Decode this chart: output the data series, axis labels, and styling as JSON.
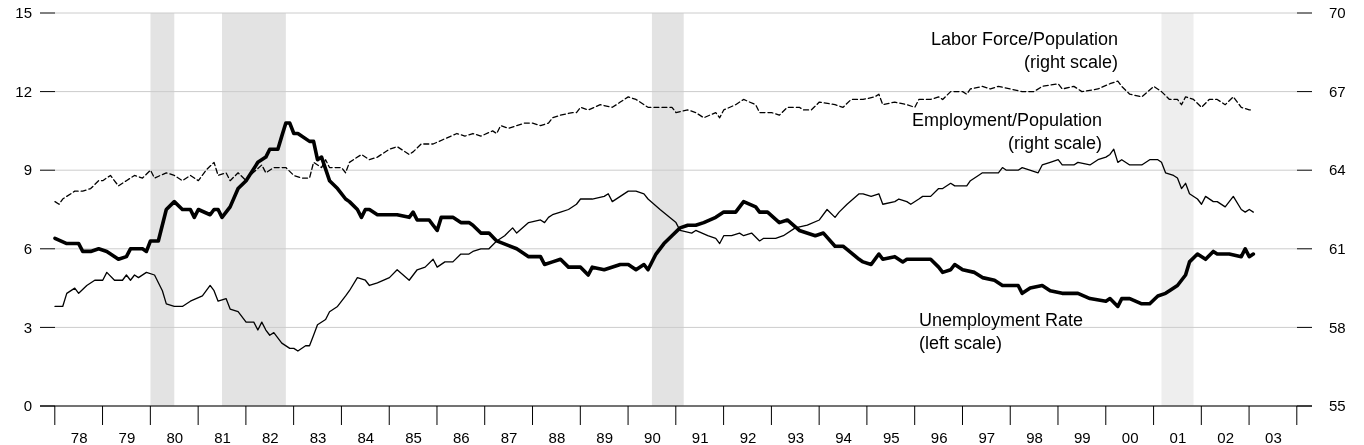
{
  "chart_data": {
    "type": "line",
    "xlim": [
      "1978-01",
      "2004-01"
    ],
    "xticks": [
      {
        "value": "1978-07",
        "label": "78"
      },
      {
        "value": "1979-07",
        "label": "79"
      },
      {
        "value": "1980-07",
        "label": "80"
      },
      {
        "value": "1981-07",
        "label": "81"
      },
      {
        "value": "1982-07",
        "label": "82"
      },
      {
        "value": "1983-07",
        "label": "83"
      },
      {
        "value": "1984-07",
        "label": "84"
      },
      {
        "value": "1985-07",
        "label": "85"
      },
      {
        "value": "1986-07",
        "label": "86"
      },
      {
        "value": "1987-07",
        "label": "87"
      },
      {
        "value": "1988-07",
        "label": "88"
      },
      {
        "value": "1989-07",
        "label": "89"
      },
      {
        "value": "1990-07",
        "label": "90"
      },
      {
        "value": "1991-07",
        "label": "91"
      },
      {
        "value": "1992-07",
        "label": "92"
      },
      {
        "value": "1993-07",
        "label": "93"
      },
      {
        "value": "1994-07",
        "label": "94"
      },
      {
        "value": "1995-07",
        "label": "95"
      },
      {
        "value": "1996-07",
        "label": "96"
      },
      {
        "value": "1997-07",
        "label": "97"
      },
      {
        "value": "1998-07",
        "label": "98"
      },
      {
        "value": "1999-07",
        "label": "99"
      },
      {
        "value": "2000-07",
        "label": "00"
      },
      {
        "value": "2001-07",
        "label": "01"
      },
      {
        "value": "2002-07",
        "label": "02"
      },
      {
        "value": "2003-07",
        "label": "03"
      }
    ],
    "ylim": [
      0,
      15
    ],
    "yticks": [
      0,
      3,
      6,
      9,
      12,
      15
    ],
    "y2lim": [
      55,
      70
    ],
    "y2ticks": [
      55,
      58,
      61,
      64,
      67,
      70
    ],
    "grid": "y",
    "bands": [
      {
        "axis": "x",
        "from": "1980-01",
        "to": "1980-07",
        "color": "#e3e3e3"
      },
      {
        "axis": "x",
        "from": "1981-07",
        "to": "1982-11",
        "color": "#e3e3e3"
      },
      {
        "axis": "x",
        "from": "1990-07",
        "to": "1991-03",
        "color": "#e3e3e3"
      },
      {
        "axis": "x",
        "from": "2001-03",
        "to": "2001-11",
        "color": "#eeeeee"
      }
    ],
    "series": [
      {
        "name": "Labor Force/Population (right scale)",
        "color": "#000000",
        "axis": "y2",
        "line_style": "dashed",
        "x": [
          "1978-01",
          "1978-02",
          "1978-03",
          "1978-06",
          "1978-08",
          "1978-10",
          "1978-12",
          "1979-01",
          "1979-03",
          "1979-05",
          "1979-07",
          "1979-09",
          "1979-11",
          "1980-01",
          "1980-02",
          "1980-05",
          "1980-07",
          "1980-09",
          "1980-11",
          "1981-01",
          "1981-03",
          "1981-05",
          "1981-06",
          "1981-08",
          "1981-09",
          "1981-11",
          "1982-01",
          "1982-02",
          "1982-05",
          "1982-06",
          "1982-08",
          "1982-11",
          "1983-01",
          "1983-03",
          "1983-05",
          "1983-06",
          "1983-08",
          "1983-09",
          "1983-10",
          "1984-01",
          "1984-02",
          "1984-03",
          "1984-06",
          "1984-08",
          "1984-10",
          "1985-01",
          "1985-03",
          "1985-06",
          "1985-07",
          "1985-09",
          "1985-12",
          "1986-03",
          "1986-06",
          "1986-08",
          "1986-10",
          "1986-12",
          "1987-03",
          "1987-04",
          "1987-05",
          "1987-07",
          "1987-09",
          "1987-11",
          "1988-01",
          "1988-03",
          "1988-05",
          "1988-06",
          "1988-08",
          "1988-11",
          "1988-12",
          "1989-01",
          "1989-03",
          "1989-06",
          "1989-09",
          "1989-11",
          "1990-01",
          "1990-03",
          "1990-06",
          "1990-09",
          "1990-12",
          "1991-01",
          "1991-04",
          "1991-06",
          "1991-08",
          "1991-11",
          "1991-12",
          "1992-01",
          "1992-04",
          "1992-06",
          "1992-09",
          "1992-10",
          "1993-01",
          "1993-03",
          "1993-05",
          "1993-08",
          "1993-09",
          "1993-11",
          "1994-01",
          "1994-05",
          "1994-07",
          "1994-09",
          "1994-12",
          "1995-03",
          "1995-04",
          "1995-05",
          "1995-08",
          "1995-11",
          "1996-01",
          "1996-02",
          "1996-05",
          "1996-07",
          "1996-08",
          "1996-10",
          "1997-01",
          "1997-02",
          "1997-03",
          "1997-06",
          "1997-08",
          "1997-10",
          "1998-01",
          "1998-04",
          "1998-07",
          "1998-09",
          "1999-01",
          "1999-02",
          "1999-05",
          "1999-07",
          "1999-11",
          "2000-02",
          "2000-04",
          "2000-05",
          "2000-07",
          "2000-10",
          "2001-01",
          "2001-03",
          "2001-05",
          "2001-07",
          "2001-08",
          "2001-09",
          "2001-11",
          "2002-01",
          "2002-03",
          "2002-05",
          "2002-07",
          "2002-09",
          "2002-11",
          "2003-01",
          "2003-02"
        ],
        "values": [
          62.8,
          62.7,
          62.9,
          63.2,
          63.2,
          63.3,
          63.6,
          63.6,
          63.8,
          63.4,
          63.6,
          63.8,
          63.7,
          64.0,
          63.7,
          63.9,
          63.8,
          63.6,
          63.8,
          63.6,
          64.0,
          64.3,
          63.8,
          63.9,
          63.6,
          63.9,
          63.6,
          63.8,
          64.2,
          63.9,
          64.1,
          64.1,
          63.8,
          63.7,
          63.7,
          64.3,
          64.1,
          64.4,
          64.1,
          64.1,
          63.9,
          64.3,
          64.6,
          64.4,
          64.5,
          64.8,
          64.9,
          64.6,
          64.7,
          65.0,
          65.0,
          65.2,
          65.4,
          65.3,
          65.4,
          65.3,
          65.5,
          65.4,
          65.7,
          65.6,
          65.7,
          65.8,
          65.8,
          65.7,
          65.8,
          66.0,
          66.1,
          66.2,
          66.2,
          66.4,
          66.3,
          66.5,
          66.4,
          66.6,
          66.8,
          66.7,
          66.4,
          66.4,
          66.4,
          66.2,
          66.3,
          66.2,
          66.0,
          66.2,
          66.0,
          66.3,
          66.5,
          66.7,
          66.5,
          66.2,
          66.2,
          66.1,
          66.4,
          66.4,
          66.3,
          66.3,
          66.6,
          66.5,
          66.4,
          66.7,
          66.7,
          66.8,
          66.9,
          66.5,
          66.6,
          66.5,
          66.4,
          66.7,
          66.7,
          66.8,
          66.7,
          67.0,
          67.0,
          66.9,
          67.1,
          67.2,
          67.1,
          67.2,
          67.1,
          67.0,
          67.0,
          67.2,
          67.3,
          67.1,
          67.2,
          67.0,
          67.1,
          67.3,
          67.4,
          67.2,
          66.9,
          66.8,
          67.2,
          67.0,
          66.7,
          66.7,
          66.5,
          66.8,
          66.7,
          66.4,
          66.7,
          66.7,
          66.5,
          66.8,
          66.4,
          66.3,
          66.3
        ]
      },
      {
        "name": "Employment/Population (right scale)",
        "color": "#000000",
        "axis": "y2",
        "line_style": "solid",
        "x": [
          "1978-01",
          "1978-03",
          "1978-04",
          "1978-06",
          "1978-07",
          "1978-09",
          "1978-11",
          "1979-01",
          "1979-02",
          "1979-04",
          "1979-06",
          "1979-07",
          "1979-08",
          "1979-09",
          "1979-10",
          "1979-12",
          "1980-02",
          "1980-04",
          "1980-05",
          "1980-07",
          "1980-09",
          "1980-11",
          "1981-02",
          "1981-04",
          "1981-05",
          "1981-06",
          "1981-08",
          "1981-09",
          "1981-11",
          "1982-01",
          "1982-03",
          "1982-04",
          "1982-05",
          "1982-06",
          "1982-07",
          "1982-08",
          "1982-10",
          "1982-12",
          "1983-01",
          "1983-02",
          "1983-04",
          "1983-05",
          "1983-06",
          "1983-07",
          "1983-09",
          "1983-10",
          "1983-12",
          "1984-02",
          "1984-03",
          "1984-05",
          "1984-07",
          "1984-08",
          "1984-10",
          "1985-01",
          "1985-03",
          "1985-06",
          "1985-08",
          "1985-10",
          "1985-12",
          "1986-01",
          "1986-03",
          "1986-05",
          "1986-07",
          "1986-09",
          "1986-10",
          "1986-12",
          "1987-02",
          "1987-04",
          "1987-06",
          "1987-08",
          "1987-09",
          "1987-12",
          "1988-03",
          "1988-04",
          "1988-05",
          "1988-06",
          "1988-08",
          "1988-10",
          "1988-12",
          "1989-01",
          "1989-04",
          "1989-07",
          "1989-08",
          "1989-09",
          "1989-11",
          "1990-01",
          "1990-03",
          "1990-05",
          "1990-06",
          "1990-09",
          "1991-01",
          "1991-02",
          "1991-05",
          "1991-06",
          "1991-09",
          "1991-11",
          "1991-12",
          "1992-01",
          "1992-03",
          "1992-05",
          "1992-06",
          "1992-08",
          "1992-10",
          "1992-11",
          "1993-02",
          "1993-04",
          "1993-07",
          "1993-10",
          "1994-01",
          "1994-03",
          "1994-05",
          "1994-06",
          "1994-08",
          "1994-11",
          "1994-12",
          "1995-02",
          "1995-04",
          "1995-05",
          "1995-08",
          "1995-09",
          "1995-11",
          "1995-12",
          "1996-02",
          "1996-03",
          "1996-05",
          "1996-07",
          "1996-08",
          "1996-10",
          "1996-11",
          "1997-02",
          "1997-03",
          "1997-05",
          "1997-06",
          "1997-10",
          "1997-11",
          "1997-12",
          "1998-03",
          "1998-04",
          "1998-08",
          "1998-09",
          "1998-11",
          "1999-01",
          "1999-02",
          "1999-05",
          "1999-06",
          "1999-09",
          "1999-11",
          "2000-01",
          "2000-02",
          "2000-03",
          "2000-04",
          "2000-05",
          "2000-07",
          "2000-10",
          "2000-12",
          "2001-02",
          "2001-03",
          "2001-04",
          "2001-06",
          "2001-07",
          "2001-08",
          "2001-09",
          "2001-10",
          "2001-12",
          "2002-01",
          "2002-02",
          "2002-04",
          "2002-05",
          "2002-07",
          "2002-09",
          "2002-11",
          "2002-12",
          "2003-01",
          "2003-02"
        ],
        "values": [
          58.8,
          58.8,
          59.3,
          59.5,
          59.3,
          59.6,
          59.8,
          59.8,
          60.1,
          59.8,
          59.8,
          60.0,
          59.8,
          60.0,
          59.9,
          60.1,
          60.0,
          59.4,
          58.9,
          58.8,
          58.8,
          59.0,
          59.2,
          59.6,
          59.4,
          59.0,
          59.1,
          58.7,
          58.6,
          58.2,
          58.2,
          57.9,
          58.2,
          57.9,
          57.7,
          57.8,
          57.4,
          57.2,
          57.2,
          57.1,
          57.3,
          57.3,
          57.7,
          58.1,
          58.3,
          58.6,
          58.8,
          59.2,
          59.4,
          59.9,
          59.8,
          59.6,
          59.7,
          59.9,
          60.2,
          59.8,
          60.2,
          60.3,
          60.6,
          60.3,
          60.5,
          60.5,
          60.8,
          60.8,
          60.9,
          61.0,
          61.0,
          61.3,
          61.5,
          61.8,
          61.6,
          62.0,
          62.1,
          62.0,
          62.2,
          62.3,
          62.4,
          62.5,
          62.7,
          62.9,
          62.9,
          63.0,
          63.1,
          62.8,
          63.0,
          63.2,
          63.2,
          63.1,
          62.9,
          62.5,
          62.0,
          61.7,
          61.6,
          61.7,
          61.5,
          61.4,
          61.2,
          61.5,
          61.5,
          61.6,
          61.5,
          61.6,
          61.3,
          61.4,
          61.4,
          61.5,
          61.8,
          61.9,
          62.1,
          62.5,
          62.2,
          62.4,
          62.7,
          63.1,
          63.1,
          63.0,
          63.1,
          62.7,
          62.8,
          62.9,
          62.8,
          62.7,
          62.9,
          63.0,
          63.0,
          63.3,
          63.3,
          63.5,
          63.4,
          63.4,
          63.6,
          63.8,
          63.9,
          63.9,
          64.1,
          64.0,
          64.0,
          64.1,
          63.9,
          64.2,
          64.3,
          64.4,
          64.2,
          64.2,
          64.3,
          64.2,
          64.4,
          64.5,
          64.6,
          64.8,
          64.3,
          64.4,
          64.2,
          64.2,
          64.4,
          64.4,
          64.3,
          63.9,
          63.8,
          63.7,
          63.3,
          63.5,
          63.1,
          62.9,
          62.7,
          63.0,
          62.8,
          62.8,
          62.6,
          63.0,
          62.5,
          62.4,
          62.5,
          62.4
        ]
      },
      {
        "name": "Unemployment Rate (left scale)",
        "color": "#000000",
        "line_style": "solid",
        "x": [
          "1978-01",
          "1978-04",
          "1978-07",
          "1978-08",
          "1978-10",
          "1978-12",
          "1979-02",
          "1979-05",
          "1979-07",
          "1979-08",
          "1979-11",
          "1979-12",
          "1980-01",
          "1980-03",
          "1980-05",
          "1980-07",
          "1980-09",
          "1980-11",
          "1980-12",
          "1981-01",
          "1981-04",
          "1981-05",
          "1981-06",
          "1981-07",
          "1981-09",
          "1981-11",
          "1982-01",
          "1982-04",
          "1982-06",
          "1982-07",
          "1982-09",
          "1982-10",
          "1982-11",
          "1982-12",
          "1983-01",
          "1983-02",
          "1983-05",
          "1983-06",
          "1983-07",
          "1983-08",
          "1983-10",
          "1983-12",
          "1984-02",
          "1984-03",
          "1984-05",
          "1984-06",
          "1984-07",
          "1984-08",
          "1984-10",
          "1985-01",
          "1985-03",
          "1985-06",
          "1985-07",
          "1985-08",
          "1985-11",
          "1985-12",
          "1986-01",
          "1986-02",
          "1986-04",
          "1986-05",
          "1986-07",
          "1986-09",
          "1986-10",
          "1986-12",
          "1987-02",
          "1987-04",
          "1987-09",
          "1987-12",
          "1988-03",
          "1988-04",
          "1988-06",
          "1988-08",
          "1988-10",
          "1989-01",
          "1989-03",
          "1989-04",
          "1989-07",
          "1989-11",
          "1990-01",
          "1990-03",
          "1990-05",
          "1990-06",
          "1990-08",
          "1990-10",
          "1990-12",
          "1991-02",
          "1991-04",
          "1991-06",
          "1991-08",
          "1991-11",
          "1992-01",
          "1992-04",
          "1992-06",
          "1992-09",
          "1992-10",
          "1992-12",
          "1993-03",
          "1993-05",
          "1993-08",
          "1993-12",
          "1994-02",
          "1994-05",
          "1994-07",
          "1994-11",
          "1994-12",
          "1995-02",
          "1995-04",
          "1995-05",
          "1995-08",
          "1995-10",
          "1995-11",
          "1996-02",
          "1996-04",
          "1996-05",
          "1996-07",
          "1996-08",
          "1996-10",
          "1996-11",
          "1997-01",
          "1997-04",
          "1997-06",
          "1997-09",
          "1997-11",
          "1998-03",
          "1998-04",
          "1998-06",
          "1998-09",
          "1998-11",
          "1999-02",
          "1999-06",
          "1999-09",
          "2000-01",
          "2000-02",
          "2000-04",
          "2000-05",
          "2000-07",
          "2000-10",
          "2000-12",
          "2001-02",
          "2001-04",
          "2001-05",
          "2001-07",
          "2001-09",
          "2001-10",
          "2001-12",
          "2002-02",
          "2002-04",
          "2002-05",
          "2002-08",
          "2002-11",
          "2002-12",
          "2003-01",
          "2003-02"
        ],
        "values": [
          6.4,
          6.2,
          6.2,
          5.9,
          5.9,
          6.0,
          5.9,
          5.6,
          5.7,
          6.0,
          6.0,
          5.9,
          6.3,
          6.3,
          7.5,
          7.8,
          7.5,
          7.5,
          7.2,
          7.5,
          7.3,
          7.5,
          7.5,
          7.2,
          7.6,
          8.3,
          8.6,
          9.3,
          9.5,
          9.8,
          9.8,
          10.3,
          10.8,
          10.8,
          10.4,
          10.4,
          10.1,
          10.1,
          9.4,
          9.5,
          8.6,
          8.3,
          7.9,
          7.8,
          7.5,
          7.2,
          7.5,
          7.5,
          7.3,
          7.3,
          7.3,
          7.2,
          7.4,
          7.1,
          7.1,
          6.9,
          6.7,
          7.2,
          7.2,
          7.2,
          7.0,
          7.0,
          6.9,
          6.6,
          6.6,
          6.3,
          6.0,
          5.7,
          5.7,
          5.4,
          5.5,
          5.6,
          5.3,
          5.3,
          5.0,
          5.3,
          5.2,
          5.4,
          5.4,
          5.2,
          5.4,
          5.2,
          5.8,
          6.2,
          6.5,
          6.8,
          6.9,
          6.9,
          7.0,
          7.2,
          7.4,
          7.4,
          7.8,
          7.6,
          7.4,
          7.4,
          7.0,
          7.1,
          6.7,
          6.5,
          6.6,
          6.1,
          6.1,
          5.6,
          5.5,
          5.4,
          5.8,
          5.6,
          5.7,
          5.5,
          5.6,
          5.6,
          5.6,
          5.6,
          5.3,
          5.1,
          5.2,
          5.4,
          5.2,
          5.1,
          4.9,
          4.8,
          4.6,
          4.6,
          4.3,
          4.5,
          4.6,
          4.4,
          4.3,
          4.3,
          4.1,
          4.0,
          4.1,
          3.8,
          4.1,
          4.1,
          3.9,
          3.9,
          4.2,
          4.3,
          4.4,
          4.6,
          5.0,
          5.5,
          5.8,
          5.6,
          5.9,
          5.8,
          5.8,
          5.7,
          6.0,
          5.7,
          5.8
        ]
      }
    ]
  }
}
